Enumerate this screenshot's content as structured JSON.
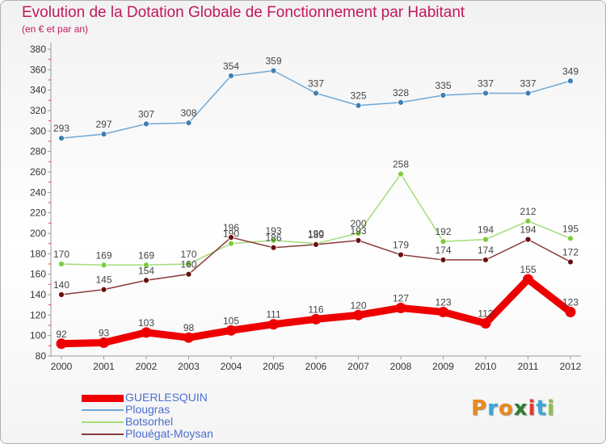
{
  "title": "Evolution de la Dotation Globale de Fonctionnement par Habitant",
  "subtitle": "(en € et par an)",
  "logo": {
    "letters": [
      "P",
      "r",
      "o",
      "x",
      "i",
      "t",
      "i"
    ],
    "colors": [
      "#e8891c",
      "#3aa6d8",
      "#e8891c",
      "#2e7d32",
      "#e53935",
      "#3aa6d8",
      "#8bc34a"
    ]
  },
  "chart_data": {
    "type": "line",
    "categories": [
      "2000",
      "2001",
      "2002",
      "2003",
      "2004",
      "2005",
      "2006",
      "2007",
      "2008",
      "2009",
      "2010",
      "2011",
      "2012"
    ],
    "ylim": [
      80,
      380
    ],
    "yticks": [
      80,
      100,
      120,
      140,
      160,
      180,
      200,
      220,
      240,
      260,
      280,
      300,
      320,
      340,
      360,
      380
    ],
    "grid": false,
    "legend_position": "bottom-left",
    "series": [
      {
        "name": "GUERLESQUIN",
        "values": [
          92,
          93,
          103,
          98,
          105,
          111,
          116,
          120,
          127,
          123,
          112,
          155,
          123
        ],
        "color": "#ee0000",
        "point_color": "#ee0000",
        "label_color": "#444444",
        "bold": true
      },
      {
        "name": "Plougras",
        "values": [
          293,
          297,
          307,
          308,
          354,
          359,
          337,
          325,
          328,
          335,
          337,
          337,
          349
        ],
        "color": "#6fa8d6",
        "point_color": "#3f7fb5",
        "label_color": "#444444",
        "bold": false
      },
      {
        "name": "Botsorhel",
        "values": [
          170,
          169,
          169,
          170,
          190,
          193,
          190,
          200,
          258,
          192,
          194,
          212,
          195
        ],
        "color": "#a3dc78",
        "point_color": "#7dcc3c",
        "label_color": "#444444",
        "bold": false
      },
      {
        "name": "Plouégat-Moysan",
        "values": [
          140,
          145,
          154,
          160,
          196,
          186,
          189,
          193,
          179,
          174,
          174,
          194,
          172
        ],
        "color": "#8a3a3a",
        "point_color": "#6a1010",
        "label_color": "#444444",
        "bold": false
      }
    ]
  }
}
